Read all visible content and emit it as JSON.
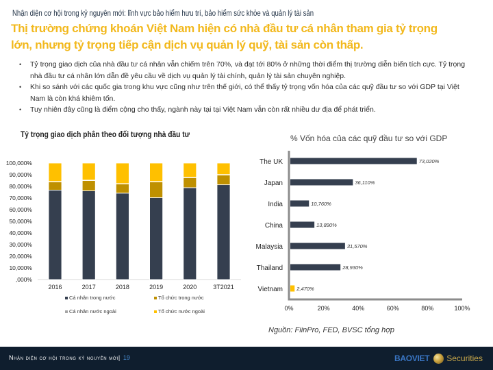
{
  "header": {
    "subtitle": "Nhận diện cơ hội trong kỷ nguyên mới: lĩnh vực bảo hiểm hưu trí, bảo hiểm sức khỏe và quản lý tài sản",
    "title_lines": [
      "Thị trường chứng khoán Việt Nam hiện có nhà đầu tư cá nhân tham gia tỷ trọng",
      "lớn, nhưng tỷ trọng tiếp cận dịch vụ quản lý quỹ, tài sản còn thấp."
    ]
  },
  "bullets": [
    {
      "marker": "•",
      "text": "Tỷ trọng giao dịch của nhà đầu tư cá nhân vẫn chiếm trên 70%, và đạt tới 80% ở những thời điểm thị trường diễn biến tích cực. Tỷ trọng nhà đầu tư cá nhân lớn dẫn đề yêu cầu về dịch vụ quản lý tài chính, quản lý tài sản chuyên nghiệp."
    },
    {
      "marker": "•",
      "text": "Khi so sánh với các quốc gia trong khu vực cũng như trên thế giới, có thể thấy tỷ trọng vốn hóa của các quỹ đầu tư so với GDP tại Việt Nam là còn khá khiêm tốn."
    },
    {
      "marker": "•",
      "text": "Tuy nhiên đây cũng là điểm cộng cho thấy, ngành này tại tại Việt Nam vẫn còn rất nhiều dư địa để phát triển."
    }
  ],
  "source": "Nguồn: FiinPro, FED, BVSC tổng hợp",
  "footer": {
    "section": "Nhận diện cơ hội trong kỷ nguyên mới|",
    "page": "19",
    "logo_brand": "BAOVIET",
    "logo_suffix": "Securities"
  },
  "colors": {
    "title": "#f2b81c",
    "navy": "#353f4f",
    "gold": "#bf9000",
    "gray": "#a5a5a5",
    "yellow": "#ffc000",
    "footer_bg": "#0f1e2e"
  },
  "chart_data": [
    {
      "type": "bar",
      "stacked": true,
      "title": "Tỷ trọng giao dịch phân theo đối tượng nhà đầu tư",
      "categories": [
        "2016",
        "2017",
        "2018",
        "2019",
        "2020",
        "3T2021"
      ],
      "series": [
        {
          "name": "Cá nhân trong nước",
          "color": "#353f4f",
          "values": [
            76.8,
            76.2,
            74.2,
            70.3,
            78.9,
            81.4
          ]
        },
        {
          "name": "Tổ chức trong nước",
          "color": "#bf9000",
          "values": [
            7.0,
            8.8,
            7.8,
            13.5,
            8.6,
            8.4
          ]
        },
        {
          "name": "Cá nhân nước ngoài",
          "color": "#a5a5a5",
          "values": [
            0.4,
            0.4,
            0.4,
            0.4,
            0.4,
            0.4
          ]
        },
        {
          "name": "Tổ chức nước ngoài",
          "color": "#ffc000",
          "values": [
            15.8,
            14.6,
            17.6,
            15.8,
            12.1,
            9.8
          ]
        }
      ],
      "ylim": [
        0,
        100
      ],
      "ytick_values": [
        100,
        90,
        80,
        70,
        60,
        50,
        40,
        30,
        20,
        10,
        0
      ],
      "yticks": [
        "100,000%",
        "90,000%",
        "80,000%",
        "70,000%",
        "60,000%",
        "50,000%",
        "40,000%",
        "30,000%",
        "20,000%",
        "10,000%",
        ",000%"
      ],
      "xlabel": "",
      "ylabel": "",
      "grid": false,
      "legend": "bottom"
    },
    {
      "type": "bar",
      "orientation": "horizontal",
      "title": "% Vốn hóa của các quỹ đầu tư so với GDP",
      "categories": [
        "The UK",
        "Japan",
        "India",
        "China",
        "Malaysia",
        "Thailand",
        "Vietnam"
      ],
      "values": [
        73.02,
        36.11,
        10.76,
        13.89,
        31.57,
        28.93,
        2.47
      ],
      "data_labels": [
        "73,020%",
        "36,110%",
        "10,760%",
        "13,890%",
        "31,570%",
        "28,930%",
        "2,470%"
      ],
      "bar_color": "#353f4f",
      "highlight": {
        "category": "Vietnam",
        "color": "#ffc000"
      },
      "xlim": [
        0,
        100
      ],
      "xtick_values": [
        0,
        20,
        40,
        60,
        80,
        100
      ],
      "xticks": [
        "0%",
        "20%",
        "40%",
        "60%",
        "80%",
        "100%"
      ],
      "grid": false,
      "legend": "none"
    }
  ]
}
